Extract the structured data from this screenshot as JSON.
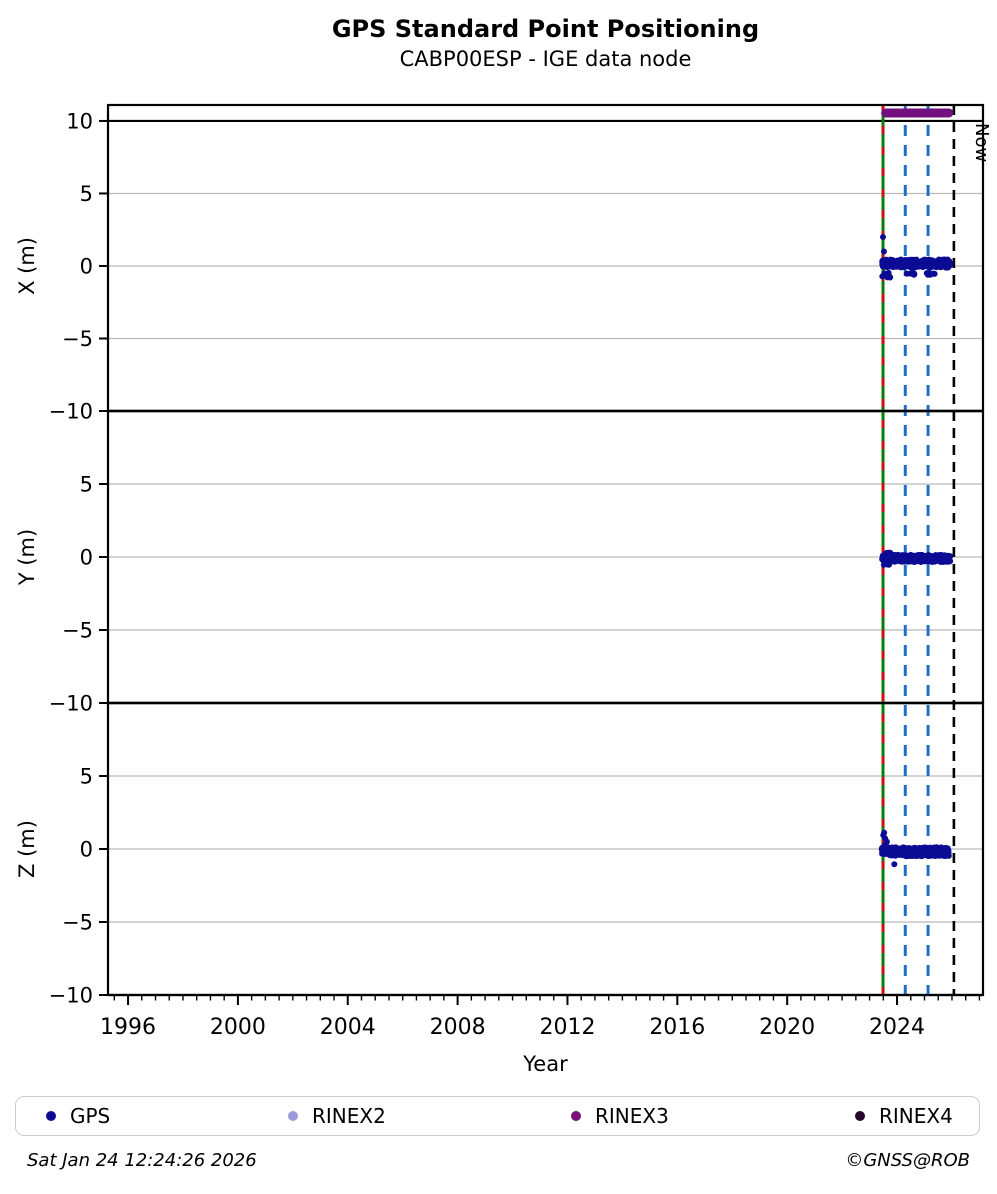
{
  "header": {
    "title": "GPS Standard Point Positioning",
    "subtitle": "CABP00ESP - IGE data node"
  },
  "legend": {
    "items": [
      {
        "label": "GPS",
        "color": "#0b0b94"
      },
      {
        "label": "RINEX2",
        "color": "#9b9bdb"
      },
      {
        "label": "RINEX3",
        "color": "#7b0f78"
      },
      {
        "label": "RINEX4",
        "color": "#26062a"
      }
    ]
  },
  "footer": {
    "timestamp": "Sat Jan 24 12:24:26 2026",
    "copyright": "©GNSS@ROB"
  },
  "chart_data": {
    "type": "scatter",
    "title": "GPS Standard Point Positioning",
    "subtitle": "CABP00ESP - IGE data node",
    "xlabel": "Year",
    "xlim": [
      1995.27,
      2027.13
    ],
    "x_major_ticks": [
      1996,
      2000,
      2004,
      2008,
      2012,
      2016,
      2020,
      2024
    ],
    "x_minor_step": 0.5,
    "grid": true,
    "point_color": "#0b0b94",
    "grid_color": "#b9b9b9",
    "panels": [
      {
        "ylabel": "X (m)",
        "ylim": [
          -10,
          11.1
        ],
        "yticks": [
          10,
          5,
          0,
          -5,
          -10
        ],
        "gridlines": [
          5,
          0,
          -5
        ],
        "black_lines": [
          10,
          -10
        ],
        "clusters": [
          {
            "x0": 2023.45,
            "x1": 2025.95,
            "y0": -0.12,
            "y1": 0.45,
            "n": 250
          },
          {
            "x0": 2023.46,
            "x1": 2023.8,
            "y0": -0.8,
            "y1": -0.45,
            "n": 10
          },
          {
            "x0": 2024.3,
            "x1": 2024.66,
            "y0": -0.62,
            "y1": -0.45,
            "n": 9
          },
          {
            "x0": 2025.08,
            "x1": 2025.38,
            "y0": -0.62,
            "y1": -0.45,
            "n": 8
          }
        ],
        "outliers": [
          [
            2023.49,
            2.0
          ],
          [
            2023.52,
            1.0
          ]
        ]
      },
      {
        "ylabel": "Y (m)",
        "ylim": [
          -10,
          10
        ],
        "yticks": [
          5,
          0,
          -5,
          -10
        ],
        "gridlines": [
          5,
          0,
          -5
        ],
        "black_lines": [
          10,
          -10
        ],
        "clusters": [
          {
            "x0": 2023.45,
            "x1": 2025.95,
            "y0": -0.35,
            "y1": 0.15,
            "n": 300
          },
          {
            "x0": 2023.45,
            "x1": 2023.75,
            "y0": -0.55,
            "y1": 0.3,
            "n": 30
          }
        ],
        "outliers": []
      },
      {
        "ylabel": "Z (m)",
        "ylim": [
          -10,
          10
        ],
        "yticks": [
          5,
          0,
          -5,
          -10
        ],
        "gridlines": [
          5,
          0,
          -5
        ],
        "black_lines": [
          10,
          -10
        ],
        "clusters": [
          {
            "x0": 2023.45,
            "x1": 2025.9,
            "y0": -0.5,
            "y1": 0.12,
            "n": 300
          },
          {
            "x0": 2023.44,
            "x1": 2023.6,
            "y0": -0.35,
            "y1": 0.3,
            "n": 12
          }
        ],
        "outliers": [
          [
            2023.5,
            0.95
          ],
          [
            2023.53,
            1.12
          ],
          [
            2023.57,
            0.72
          ],
          [
            2023.63,
            0.5
          ],
          [
            2023.9,
            -1.05
          ]
        ]
      }
    ],
    "annotations": {
      "data_start_line": {
        "year": 2023.49,
        "line_color": "#067d06",
        "dash_color": "#cc1111"
      },
      "blue_dashed_years": [
        2024.3,
        2025.13
      ],
      "blue_dash_color": "#1e6fc8",
      "now_line": {
        "year": 2026.07,
        "label": "Now",
        "color": "#000000"
      },
      "rinex3_bar": {
        "x0": 2023.42,
        "x1": 2026.05,
        "y": 10.55,
        "color": "#73107f"
      }
    }
  }
}
